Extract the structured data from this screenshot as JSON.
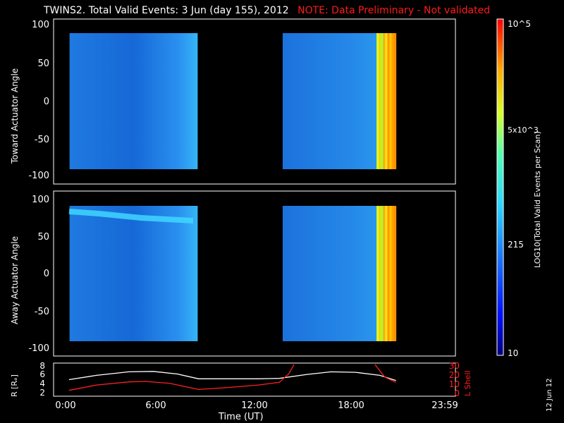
{
  "header": {
    "title": "TWINS2. Total Valid Events:  3 Jun (day 155), 2012",
    "note": "NOTE: Data Preliminary - Not validated"
  },
  "colors": {
    "note": "#ff1a1a",
    "l_shell": "#ff2020",
    "r_line": "#ffffff"
  },
  "chart_data": [
    {
      "type": "heatmap",
      "ylabel": "Toward Actuator Angle",
      "ylim": [
        -110,
        110
      ],
      "yticks": [
        "100",
        "50",
        "0",
        "-50",
        "-100"
      ],
      "blocks": [
        {
          "x_start": "0:20",
          "x_end": "8:15"
        },
        {
          "x_start": "13:30",
          "x_end": "20:30"
        }
      ]
    },
    {
      "type": "heatmap",
      "ylabel": "Away Actuator Angle",
      "ylim": [
        -110,
        110
      ],
      "yticks": [
        "100",
        "50",
        "0",
        "-50",
        "-100"
      ],
      "blocks": [
        {
          "x_start": "0:20",
          "x_end": "8:15"
        },
        {
          "x_start": "13:30",
          "x_end": "20:30"
        }
      ]
    },
    {
      "type": "line",
      "xlabel": "Time (UT)",
      "xticks": [
        "0:00",
        "6:00",
        "12:00",
        "18:00",
        "23:59"
      ],
      "ylabel_left": "R [Rₑ]",
      "yticks_left": [
        "8",
        "6",
        "4",
        "2"
      ],
      "ylim_left": [
        1.5,
        8.5
      ],
      "ylabel_right": "L Shell",
      "yticks_right": [
        "30",
        "20",
        "10",
        "0"
      ],
      "ylim_right": [
        -2,
        32
      ],
      "series": [
        {
          "name": "R [Rₑ]",
          "color": "#ffffff",
          "x_hours": [
            0.3,
            2,
            4,
            5.5,
            7,
            8.3,
            10,
            12,
            13.3,
            15,
            16.5,
            18,
            19.5,
            20.5
          ],
          "values": [
            5.0,
            6.0,
            6.8,
            6.9,
            6.3,
            5.2,
            5.2,
            5.2,
            5.3,
            6.2,
            6.8,
            6.7,
            6.0,
            4.8
          ]
        },
        {
          "name": "L Shell",
          "color": "#ff2020",
          "x_hours": [
            0.3,
            2,
            4,
            5,
            6.5,
            8.3,
            10,
            12,
            13.3,
            13.9,
            14.2
          ],
          "values": [
            3,
            9,
            12.5,
            13,
            11,
            4,
            6,
            9,
            12,
            22,
            32
          ]
        },
        {
          "name": "L Shell (post-gap)",
          "color": "#ff2020",
          "x_hours": [
            19.2,
            19.8,
            20.5
          ],
          "values": [
            32,
            18,
            12
          ]
        }
      ]
    },
    {
      "type": "colorbar",
      "label": "LOG10(Total Valid Events per Scan)",
      "ticks": [
        "10^5",
        "5x10^3",
        "215",
        "10"
      ]
    }
  ],
  "footer": {
    "date_stamp": "12 Jun 12"
  }
}
